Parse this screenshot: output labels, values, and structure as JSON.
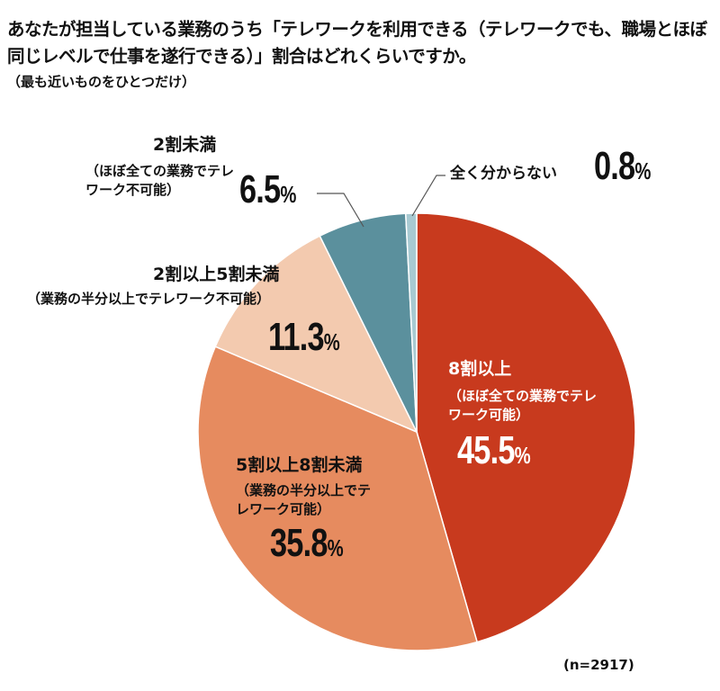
{
  "title": "あなたが担当している業務のうち「テレワークを利用できる（テレワークでも、職場とほぼ同じレベルで仕事を遂行できる）」割合はどれくらいですか。",
  "subtitle": "（最も近いものをひとつだけ）",
  "sample_size": "(n=2917)",
  "chart_data": {
    "type": "pie",
    "title": "あなたが担当している業務のうち「テレワークを利用できる（テレワークでも、職場とほぼ同じレベルで仕事を遂行できる）」割合はどれくらいですか。",
    "start": "top",
    "direction": "clockwise",
    "slices": [
      {
        "label": "8割以上",
        "note": "（ほぼ全ての業務でテレワーク可能）",
        "value": 45.5,
        "display": "45.5",
        "color": "#C83A1E"
      },
      {
        "label": "5割以上8割未満",
        "note": "（業務の半分以上でテレワーク可能）",
        "value": 35.8,
        "display": "35.8",
        "color": "#E68B5F"
      },
      {
        "label": "2割以上5割未満",
        "note": "（業務の半分以上でテレワーク不可能）",
        "value": 11.3,
        "display": "11.3",
        "color": "#F3CAAF"
      },
      {
        "label": "2割未満",
        "note": "（ほぼ全ての業務でテレワーク不可能）",
        "value": 6.5,
        "display": "6.5",
        "color": "#5B909D"
      },
      {
        "label": "全く分からない",
        "note": "",
        "value": 0.8,
        "display": "0.8",
        "color": "#A8CAD2"
      }
    ],
    "unit": "%"
  }
}
